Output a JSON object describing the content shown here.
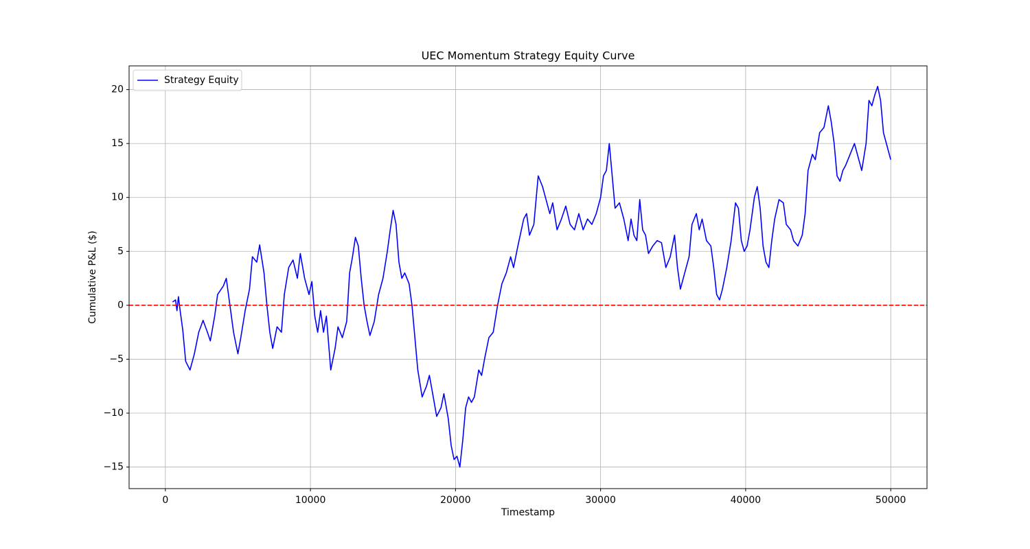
{
  "chart_data": {
    "type": "line",
    "title": "UEC Momentum Strategy Equity Curve",
    "xlabel": "Timestamp",
    "ylabel": "Cumulative P&L ($)",
    "xlim": [
      -2500,
      52500
    ],
    "ylim": [
      -17,
      22.2
    ],
    "xticks": [
      0,
      10000,
      20000,
      30000,
      40000,
      50000
    ],
    "yticks": [
      {
        "value": -15,
        "label": "−15"
      },
      {
        "value": -10,
        "label": "−10"
      },
      {
        "value": -5,
        "label": "−5"
      },
      0,
      5,
      10,
      15,
      20
    ],
    "grid": true,
    "legend": "upper left",
    "hline": 0,
    "hline_color": "#ff0000",
    "x": [
      500,
      700,
      800,
      900,
      1000,
      1200,
      1400,
      1700,
      2000,
      2300,
      2600,
      2900,
      3100,
      3400,
      3600,
      4000,
      4200,
      4400,
      4700,
      5000,
      5200,
      5500,
      5800,
      6000,
      6300,
      6500,
      6800,
      7000,
      7200,
      7400,
      7700,
      8000,
      8200,
      8500,
      8800,
      9100,
      9300,
      9600,
      9900,
      10100,
      10300,
      10500,
      10700,
      10900,
      11100,
      11400,
      11700,
      11900,
      12200,
      12500,
      12700,
      12900,
      13100,
      13300,
      13500,
      13700,
      13900,
      14100,
      14400,
      14700,
      15000,
      15300,
      15500,
      15700,
      15900,
      16100,
      16300,
      16500,
      16800,
      17000,
      17200,
      17400,
      17700,
      18000,
      18200,
      18400,
      18700,
      19000,
      19200,
      19500,
      19700,
      19900,
      20100,
      20300,
      20500,
      20700,
      20900,
      21100,
      21300,
      21600,
      21800,
      22000,
      22300,
      22600,
      22900,
      23200,
      23500,
      23800,
      24000,
      24300,
      24700,
      24900,
      25100,
      25400,
      25700,
      26000,
      26300,
      26500,
      26700,
      27000,
      27300,
      27600,
      27900,
      28200,
      28500,
      28800,
      29100,
      29400,
      29700,
      30000,
      30200,
      30400,
      30600,
      30800,
      31000,
      31300,
      31600,
      31900,
      32100,
      32300,
      32500,
      32700,
      32900,
      33100,
      33300,
      33600,
      33900,
      34200,
      34500,
      34800,
      35100,
      35300,
      35500,
      35800,
      36100,
      36300,
      36600,
      36800,
      37000,
      37300,
      37600,
      37800,
      38000,
      38200,
      38400,
      38700,
      39000,
      39300,
      39500,
      39700,
      39900,
      40100,
      40300,
      40600,
      40800,
      41000,
      41200,
      41400,
      41600,
      41800,
      42000,
      42300,
      42600,
      42800,
      43100,
      43300,
      43600,
      43900,
      44100,
      44300,
      44600,
      44800,
      45100,
      45400,
      45700,
      45900,
      46100,
      46300,
      46500,
      46700,
      46900,
      47200,
      47500,
      47800,
      48000,
      48300,
      48500,
      48700,
      48900,
      49100,
      49300,
      49500,
      49700,
      50000
    ],
    "series": [
      {
        "name": "Strategy Equity",
        "color": "#0000ff",
        "values": [
          0.3,
          0.5,
          -0.5,
          0.8,
          -0.3,
          -2.3,
          -5.2,
          -6.0,
          -4.5,
          -2.5,
          -1.4,
          -2.5,
          -3.3,
          -1.0,
          1.0,
          1.8,
          2.5,
          0.5,
          -2.5,
          -4.5,
          -3.0,
          -0.5,
          1.5,
          4.5,
          4.0,
          5.6,
          3.0,
          0.0,
          -2.5,
          -4.0,
          -2.0,
          -2.5,
          1.0,
          3.5,
          4.2,
          2.5,
          4.8,
          2.5,
          1.0,
          2.2,
          -1.0,
          -2.5,
          -0.5,
          -2.5,
          -1.0,
          -6.0,
          -4.0,
          -2.0,
          -3.0,
          -1.5,
          3.0,
          4.5,
          6.3,
          5.5,
          2.5,
          0.0,
          -1.5,
          -2.8,
          -1.5,
          1.0,
          2.5,
          5.0,
          7.0,
          8.8,
          7.5,
          4.0,
          2.5,
          3.0,
          2.0,
          0.0,
          -3.0,
          -6.0,
          -8.5,
          -7.5,
          -6.5,
          -8.0,
          -10.3,
          -9.5,
          -8.2,
          -10.5,
          -13.0,
          -14.3,
          -14.0,
          -15.0,
          -12.5,
          -9.5,
          -8.5,
          -9.0,
          -8.5,
          -6.0,
          -6.5,
          -5.0,
          -3.0,
          -2.5,
          0.0,
          2.0,
          3.0,
          4.5,
          3.5,
          5.5,
          8.0,
          8.5,
          6.5,
          7.5,
          12.0,
          11.0,
          9.5,
          8.5,
          9.5,
          7.0,
          8.0,
          9.2,
          7.5,
          7.0,
          8.5,
          7.0,
          8.0,
          7.5,
          8.5,
          10.0,
          12.0,
          12.5,
          15.0,
          12.0,
          9.0,
          9.5,
          8.0,
          6.0,
          8.0,
          6.5,
          6.0,
          9.8,
          7.0,
          6.5,
          4.8,
          5.5,
          6.0,
          5.8,
          3.5,
          4.5,
          6.5,
          3.5,
          1.5,
          3.0,
          4.5,
          7.5,
          8.5,
          7.0,
          8.0,
          6.0,
          5.5,
          3.5,
          1.0,
          0.5,
          1.5,
          3.5,
          6.0,
          9.5,
          9.0,
          6.0,
          5.0,
          5.5,
          7.0,
          10.0,
          11.0,
          9.0,
          5.5,
          4.0,
          3.5,
          6.0,
          8.0,
          9.8,
          9.5,
          7.5,
          7.0,
          6.0,
          5.5,
          6.5,
          8.5,
          12.5,
          14.0,
          13.5,
          16.0,
          16.5,
          18.5,
          17.0,
          15.0,
          12.0,
          11.5,
          12.5,
          13.0,
          14.0,
          15.0,
          13.5,
          12.5,
          15.0,
          19.0,
          18.5,
          19.5,
          20.3,
          19.0,
          16.0,
          15.0,
          13.5
        ]
      }
    ]
  }
}
